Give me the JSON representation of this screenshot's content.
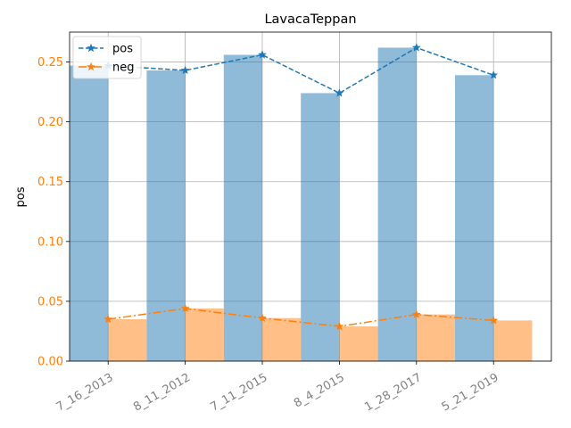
{
  "chart_data": {
    "type": "bar",
    "title": "LavacaTeppan",
    "xlabel": "",
    "ylabel": "pos",
    "ylim": [
      0,
      0.275
    ],
    "yticks": [
      "0.00",
      "0.05",
      "0.10",
      "0.15",
      "0.20",
      "0.25"
    ],
    "categories": [
      "7_16_2013",
      "8_11_2012",
      "7_11_2015",
      "8_4_2015",
      "1_28_2017",
      "5_21_2019"
    ],
    "grid": true,
    "legend_position": "top-left",
    "series": [
      {
        "name": "pos",
        "values": [
          0.247,
          0.243,
          0.256,
          0.224,
          0.262,
          0.239
        ],
        "color": "#1f77b4",
        "line_style": "dashed",
        "marker": "star"
      },
      {
        "name": "neg",
        "values": [
          0.035,
          0.044,
          0.036,
          0.029,
          0.039,
          0.034
        ],
        "color": "#ff7f0e",
        "line_style": "dashdot",
        "marker": "star"
      }
    ],
    "tick_label_colors": {
      "x": "#808080",
      "y": "#ff7f0e"
    }
  }
}
